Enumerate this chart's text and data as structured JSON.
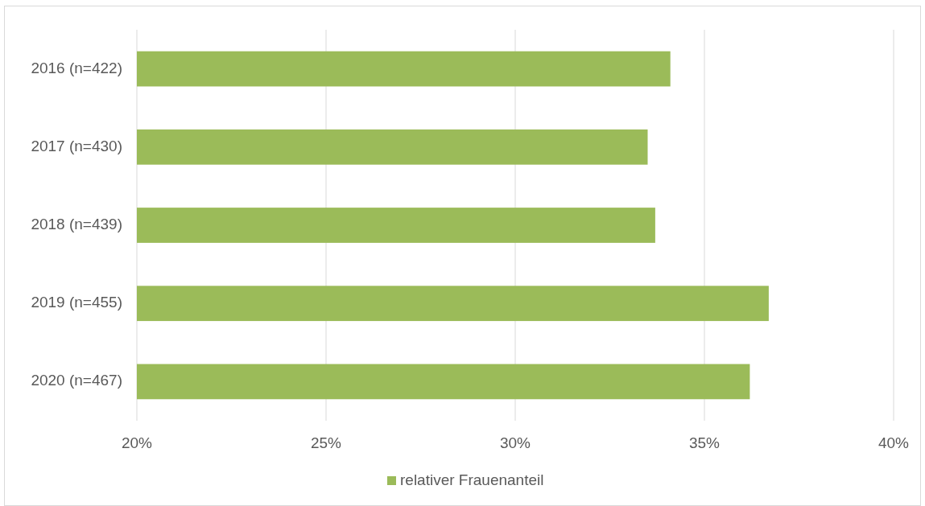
{
  "chart_data": {
    "type": "bar",
    "orientation": "horizontal",
    "categories": [
      "2016 (n=422)",
      "2017 (n=430)",
      "2018 (n=439)",
      "2019 (n=455)",
      "2020 (n=467)"
    ],
    "series": [
      {
        "name": "relativer Frauenanteil",
        "color": "#9bbb59",
        "values": [
          34.1,
          33.5,
          33.7,
          36.7,
          36.2
        ]
      }
    ],
    "xlim": [
      20,
      40
    ],
    "xticks": [
      {
        "value": 20,
        "label": "20%"
      },
      {
        "value": 25,
        "label": "25%"
      },
      {
        "value": 30,
        "label": "30%"
      },
      {
        "value": 35,
        "label": "35%"
      },
      {
        "value": 40,
        "label": "40%"
      }
    ],
    "grid": "x",
    "legend": "bottom"
  }
}
